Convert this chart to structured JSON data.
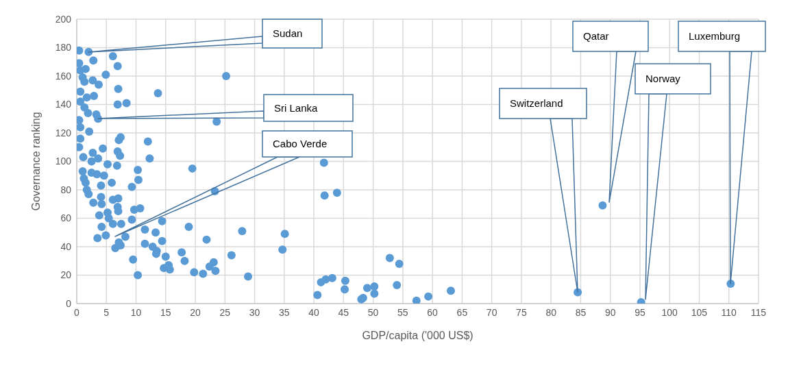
{
  "chart_data": {
    "type": "scatter",
    "xlabel": "GDP/capita ('000 US$)",
    "ylabel": "Governance ranking",
    "x": [
      0.4,
      2.0,
      2.8,
      6.1,
      6.9,
      4.9,
      25.2,
      0.4,
      0.6,
      1.0,
      1.5,
      1.3,
      2.7,
      3.7,
      7.0,
      13.7,
      0.6,
      2.9,
      1.7,
      0.6,
      6.9,
      8.4,
      1.3,
      1.9,
      3.3,
      3.6,
      23.6,
      0.4,
      0.6,
      2.1,
      0.6,
      7.4,
      7.1,
      12.0,
      0.4,
      1.1,
      2.7,
      4.4,
      6.9,
      7.3,
      12.3,
      2.5,
      3.6,
      5.2,
      6.8,
      10.3,
      19.5,
      1.0,
      2.5,
      3.4,
      4.6,
      1.2,
      1.5,
      4.1,
      5.9,
      10.4,
      9.3,
      1.7,
      2.0,
      2.8,
      4.1,
      4.2,
      6.1,
      7.0,
      6.9,
      7.0,
      3.8,
      5.2,
      5.4,
      6.1,
      7.5,
      9.7,
      10.7,
      9.3,
      14.4,
      4.2,
      4.9,
      3.5,
      8.2,
      23.3,
      18.9,
      11.5,
      13.3,
      27.9,
      7.1,
      6.5,
      7.4,
      11.5,
      12.8,
      13.5,
      13.4,
      14.4,
      21.9,
      9.5,
      15.0,
      17.7,
      18.2,
      26.1,
      14.7,
      15.5,
      15.7,
      23.1,
      22.4,
      23.4,
      19.8,
      21.3,
      10.3,
      41.7,
      41.8,
      43.9,
      35.1,
      34.7,
      28.9,
      52.8,
      54.4,
      40.6,
      41.2,
      42.0,
      43.1,
      45.3,
      45.2,
      48.0,
      48.3,
      49.0,
      50.2,
      50.2,
      54.0,
      57.3,
      59.3,
      63.1,
      84.5,
      88.7,
      95.2,
      110.3
    ],
    "values": [
      178,
      177,
      171,
      174,
      167,
      161,
      160,
      169,
      164,
      159,
      165,
      156,
      157,
      154,
      151,
      148,
      149,
      146,
      145,
      142,
      140,
      141,
      138,
      134,
      133,
      130,
      128,
      129,
      124,
      121,
      116,
      117,
      115,
      114,
      110,
      103,
      106,
      109,
      107,
      104,
      102,
      100,
      102,
      98,
      97,
      94,
      95,
      93,
      92,
      91,
      90,
      88,
      85,
      83,
      85,
      87,
      82,
      80,
      77,
      71,
      75,
      70,
      73,
      74,
      68,
      65,
      62,
      64,
      60,
      56,
      56,
      66,
      67,
      59,
      58,
      54,
      48,
      46,
      47,
      79,
      54,
      52,
      50,
      51,
      43,
      39,
      41,
      42,
      40,
      37,
      35,
      44,
      45,
      31,
      33,
      36,
      30,
      34,
      25,
      27,
      24,
      29,
      26,
      23,
      22,
      21,
      20,
      99,
      76,
      78,
      49,
      38,
      19,
      32,
      28,
      6,
      15,
      17,
      18,
      16,
      10,
      3,
      4,
      11,
      12,
      7,
      13,
      2,
      5,
      9,
      8,
      69,
      1,
      14
    ],
    "color": "#5b9bd5",
    "marker": "circle",
    "xlim": [
      0,
      115
    ],
    "xticks": [
      0,
      5,
      10,
      15,
      20,
      25,
      30,
      35,
      40,
      45,
      50,
      55,
      60,
      65,
      70,
      75,
      80,
      85,
      90,
      95,
      100,
      105,
      110,
      115
    ],
    "ylim": [
      0,
      200
    ],
    "yticks": [
      0,
      20,
      40,
      60,
      80,
      100,
      120,
      140,
      160,
      180,
      200
    ],
    "grid": true,
    "annotations": [
      "Sudan",
      "Sri Lanka",
      "Cabo Verde",
      "Switzerland",
      "Qatar",
      "Norway",
      "Luxemburg"
    ]
  }
}
